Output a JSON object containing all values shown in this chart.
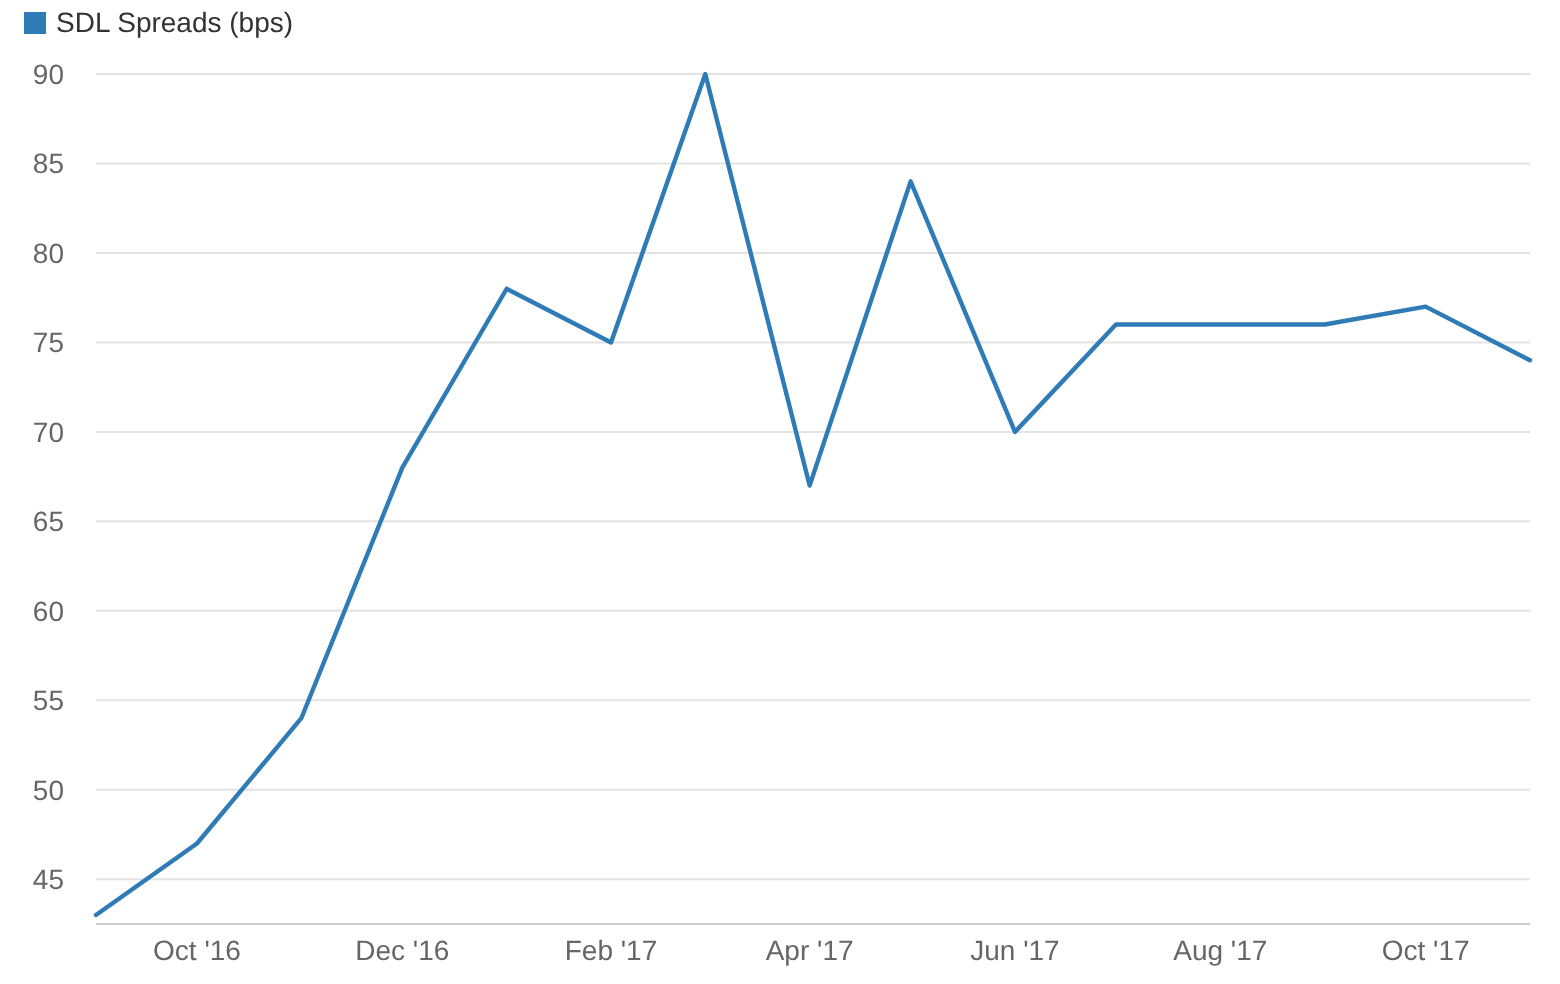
{
  "chart_data": {
    "type": "line",
    "x": [
      "2016-09",
      "2016-10",
      "2016-11",
      "2016-12",
      "2017-01",
      "2017-02",
      "2017-03",
      "2017-04",
      "2017-05",
      "2017-06",
      "2017-07",
      "2017-08",
      "2017-09",
      "2017-10",
      "2017-11"
    ],
    "series": [
      {
        "name": "SDL Spreads (bps)",
        "color": "#2e7bb6",
        "values": [
          43,
          47,
          54,
          68,
          78,
          75,
          90,
          67,
          84,
          70,
          76,
          76,
          76,
          77,
          74
        ]
      }
    ],
    "xlim": [
      "2016-09",
      "2017-11"
    ],
    "xticks": [
      {
        "value": "2016-10",
        "label": "Oct '16"
      },
      {
        "value": "2016-12",
        "label": "Dec '16"
      },
      {
        "value": "2017-02",
        "label": "Feb '17"
      },
      {
        "value": "2017-04",
        "label": "Apr '17"
      },
      {
        "value": "2017-06",
        "label": "Jun '17"
      },
      {
        "value": "2017-08",
        "label": "Aug '17"
      },
      {
        "value": "2017-10",
        "label": "Oct '17"
      }
    ],
    "ylim": [
      42.5,
      90
    ],
    "yticks": [
      45,
      50,
      55,
      60,
      65,
      70,
      75,
      80,
      85,
      90
    ],
    "grid": "y",
    "legend": "top left",
    "marker": "none",
    "line_style": "solid"
  }
}
